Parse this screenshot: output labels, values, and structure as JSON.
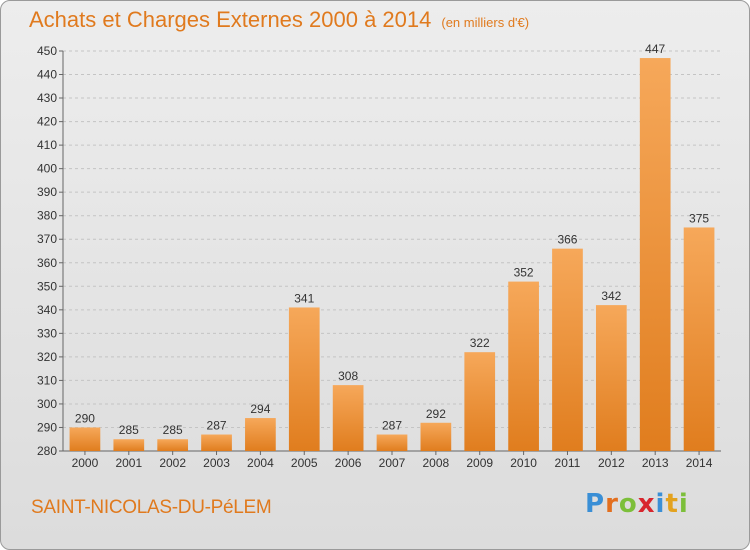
{
  "header": {
    "title": "Achats et Charges Externes 2000 à 2014",
    "subtitle": "(en milliers d'€)"
  },
  "footer": {
    "commune": "SAINT-NICOLAS-DU-PéLEM",
    "logo_letters": [
      "P",
      "r",
      "o",
      "x",
      "i",
      "t",
      "i"
    ],
    "logo_colors": [
      "#3a8fd6",
      "#e36f1e",
      "#7cbf3a",
      "#d8262e",
      "#3a8fd6",
      "#e3a21e",
      "#7cbf3a"
    ]
  },
  "chart_data": {
    "type": "bar",
    "title": "Achats et Charges Externes 2000 à 2014",
    "subtitle": "(en milliers d'€)",
    "xlabel": "",
    "ylabel": "",
    "categories": [
      "2000",
      "2001",
      "2002",
      "2003",
      "2004",
      "2005",
      "2006",
      "2007",
      "2008",
      "2009",
      "2010",
      "2011",
      "2012",
      "2013",
      "2014"
    ],
    "values": [
      290,
      285,
      285,
      287,
      294,
      341,
      308,
      287,
      292,
      322,
      352,
      366,
      342,
      447,
      375
    ],
    "ylim": [
      280,
      450
    ],
    "yticks": [
      280,
      290,
      300,
      310,
      320,
      330,
      340,
      350,
      360,
      370,
      380,
      390,
      400,
      410,
      420,
      430,
      440,
      450
    ],
    "grid": true,
    "bar_color_light": "#f6a85a",
    "bar_color_dark": "#e07d1e"
  }
}
